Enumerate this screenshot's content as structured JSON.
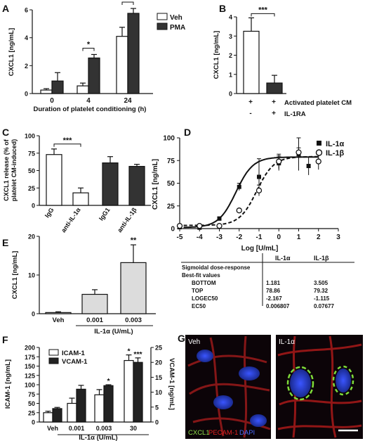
{
  "panel_labels": {
    "A": "A",
    "B": "B",
    "C": "C",
    "D": "D",
    "E": "E",
    "F": "F",
    "G": "G"
  },
  "colors": {
    "white_bar": "#ffffff",
    "dark_bar": "#333333",
    "light_bar": "#dcdcdc",
    "stroke": "#111111"
  },
  "chart_data": [
    {
      "panel": "A",
      "type": "bar",
      "xlabel": "Duration of platelet conditioning (h)",
      "ylabel": "CXCL1 [ng/mL]",
      "ylim": [
        0,
        6
      ],
      "yticks": [
        0,
        2,
        4,
        6
      ],
      "categories": [
        "0",
        "4",
        "24"
      ],
      "series": [
        {
          "name": "Veh",
          "color": "#ffffff",
          "values": [
            0.25,
            0.55,
            4.1
          ],
          "errors": [
            0.1,
            0.2,
            0.65
          ]
        },
        {
          "name": "PMA",
          "color": "#333333",
          "values": [
            0.9,
            2.55,
            5.75
          ],
          "errors": [
            0.6,
            0.25,
            0.35
          ]
        }
      ],
      "significance": [
        {
          "label": "*",
          "category": "4"
        },
        {
          "label": "*",
          "category": "24"
        }
      ]
    },
    {
      "panel": "B",
      "type": "bar",
      "ylabel": "CXCL1 [ng/mL]",
      "ylim": [
        0,
        4
      ],
      "yticks": [
        0,
        1,
        2,
        3,
        4
      ],
      "conditions": {
        "row1": {
          "label": "Activated platelet CM",
          "values": [
            "+",
            "+"
          ]
        },
        "row2": {
          "label": "IL-1RA",
          "values": [
            "-",
            "+"
          ]
        }
      },
      "values": [
        3.25,
        0.55
      ],
      "errors": [
        0.7,
        0.4
      ],
      "colors": [
        "#ffffff",
        "#333333"
      ],
      "significance": [
        {
          "label": "***"
        }
      ]
    },
    {
      "panel": "C",
      "type": "bar",
      "ylabel_line1": "CXCL1 release (% of",
      "ylabel_line2": "platelet CM-induced)",
      "ylim": [
        0,
        100
      ],
      "yticks": [
        0,
        25,
        50,
        75,
        100
      ],
      "categories": [
        "IgG",
        "anti-IL-1α",
        "IgG1",
        "anti-IL-1β"
      ],
      "values": [
        73,
        18,
        61,
        56
      ],
      "errors": [
        8,
        7,
        9,
        3
      ],
      "colors": [
        "#ffffff",
        "#ffffff",
        "#333333",
        "#333333"
      ],
      "significance": [
        {
          "label": "***"
        }
      ]
    },
    {
      "panel": "D",
      "type": "scatter",
      "xlabel": "Log [U/mL]",
      "ylabel": "CXCL1 [ng/mL]",
      "xlim": [
        -5,
        3
      ],
      "ylim": [
        0,
        100
      ],
      "xticks": [
        -5,
        -4,
        -3,
        -2,
        -1,
        0,
        1,
        2,
        3
      ],
      "yticks": [
        0,
        25,
        50,
        75,
        100
      ],
      "series": [
        {
          "name": "IL-1α",
          "marker": "square",
          "fit": "solid",
          "bottom": 1.181,
          "top": 78.86,
          "logec50": -2.167,
          "points": [
            {
              "x": -5,
              "y": 1.5,
              "e": 1
            },
            {
              "x": -4,
              "y": 1,
              "e": 1
            },
            {
              "x": -3,
              "y": 11,
              "e": 2
            },
            {
              "x": -2,
              "y": 46,
              "e": 4
            },
            {
              "x": -1,
              "y": 57,
              "e": 20
            },
            {
              "x": 0,
              "y": 72,
              "e": 8
            },
            {
              "x": 1,
              "y": 82,
              "e": 18
            },
            {
              "x": 1.5,
              "y": 69,
              "e": 10
            }
          ]
        },
        {
          "name": "IL-1β",
          "marker": "circle",
          "fit": "dashed",
          "bottom": 3.505,
          "top": 79.32,
          "logec50": -1.115,
          "points": [
            {
              "x": -5,
              "y": 3,
              "e": 1
            },
            {
              "x": -4,
              "y": 3,
              "e": 1
            },
            {
              "x": -3,
              "y": 3,
              "e": 1
            },
            {
              "x": -2,
              "y": 20,
              "e": 2
            },
            {
              "x": -1,
              "y": 42,
              "e": 6
            },
            {
              "x": 0,
              "y": 74,
              "e": 8
            },
            {
              "x": 1,
              "y": 84,
              "e": 5
            },
            {
              "x": 2,
              "y": 74,
              "e": 9
            }
          ]
        }
      ],
      "table": {
        "headers": [
          "",
          "IL-1α",
          "IL-1β"
        ],
        "rows": [
          [
            "Sigmoidal dose-response",
            "",
            ""
          ],
          [
            "Best-fit values",
            "",
            ""
          ],
          [
            "BOTTOM",
            "1.181",
            "3.505"
          ],
          [
            "TOP",
            "78.86",
            "79.32"
          ],
          [
            "LOGEC50",
            "-2.167",
            "-1.115"
          ],
          [
            "EC50",
            "0.006807",
            "0.07677"
          ]
        ]
      }
    },
    {
      "panel": "E",
      "type": "bar",
      "ylabel": "CXCL1 [ng/mL]",
      "xlabel": "IL-1α (U/mL)",
      "ylim": [
        0,
        20
      ],
      "yticks": [
        0,
        10,
        20
      ],
      "categories": [
        "Veh",
        "0.001",
        "0.003"
      ],
      "values": [
        0.3,
        5,
        13.2
      ],
      "errors": [
        0.2,
        1.2,
        4.6
      ],
      "colors": [
        "#dcdcdc",
        "#dcdcdc",
        "#dcdcdc"
      ],
      "significance": [
        {
          "label": "**",
          "category": "0.003"
        }
      ]
    },
    {
      "panel": "F",
      "type": "bar",
      "ylabel": "ICAM-1 [ng/mL]",
      "y2label": "VCAM-1 [ng/mL]",
      "xlabel": "IL-1α (U/mL)",
      "ylim": [
        0,
        200
      ],
      "yticks": [
        0,
        25,
        50,
        75,
        100,
        125,
        150,
        175,
        200
      ],
      "y2lim": [
        0,
        25
      ],
      "y2ticks": [
        0,
        5,
        10,
        15,
        20,
        25
      ],
      "categories": [
        "Veh",
        "0.001",
        "0.003",
        "30"
      ],
      "series": [
        {
          "name": "ICAM-1",
          "color": "#ffffff",
          "values": [
            25,
            50,
            73,
            165
          ],
          "errors": [
            4,
            14,
            14,
            15
          ]
        },
        {
          "name": "VCAM-1",
          "color": "#222222",
          "values": [
            4.5,
            11,
            12.2,
            20
          ],
          "errors": [
            0.4,
            1.3,
            0.3,
            1.5
          ]
        }
      ],
      "significance": [
        {
          "label": "*",
          "category": "0.003"
        },
        {
          "label": "*",
          "category": "30",
          "series": "ICAM-1"
        },
        {
          "label": "***",
          "category": "30",
          "series": "VCAM-1"
        }
      ]
    }
  ],
  "panel_g": {
    "left_label": "Veh",
    "right_label": "IL-1α",
    "legend": [
      "CXCL1",
      "PECAM-1",
      "DAPI"
    ],
    "legend_colors": [
      "#8fe04a",
      "#e02020",
      "#4a6cff"
    ]
  }
}
